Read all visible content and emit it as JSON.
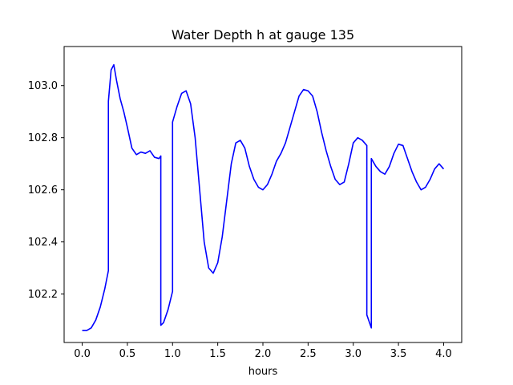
{
  "chart_data": {
    "type": "line",
    "title": "Water Depth h at gauge 135",
    "xlabel": "hours",
    "ylabel": "",
    "xlim": [
      -0.2,
      4.2
    ],
    "ylim": [
      102.014,
      103.15
    ],
    "xticks": [
      0.0,
      0.5,
      1.0,
      1.5,
      2.0,
      2.5,
      3.0,
      3.5,
      4.0
    ],
    "xtick_labels": [
      "0.0",
      "0.5",
      "1.0",
      "1.5",
      "2.0",
      "2.5",
      "3.0",
      "3.5",
      "4.0"
    ],
    "yticks": [
      102.2,
      102.4,
      102.6,
      102.8,
      103.0
    ],
    "ytick_labels": [
      "102.2",
      "102.4",
      "102.6",
      "102.8",
      "103.0"
    ],
    "grid": false,
    "series": [
      {
        "color": "#0000ff",
        "x": [
          0.0,
          0.05,
          0.1,
          0.15,
          0.2,
          0.25,
          0.29,
          0.29,
          0.32,
          0.35,
          0.38,
          0.42,
          0.46,
          0.5,
          0.55,
          0.6,
          0.65,
          0.7,
          0.75,
          0.8,
          0.85,
          0.87,
          0.87,
          0.9,
          0.95,
          1.0,
          1.0,
          1.05,
          1.1,
          1.15,
          1.2,
          1.25,
          1.3,
          1.35,
          1.4,
          1.45,
          1.5,
          1.55,
          1.6,
          1.65,
          1.7,
          1.75,
          1.8,
          1.85,
          1.9,
          1.95,
          2.0,
          2.05,
          2.1,
          2.15,
          2.2,
          2.25,
          2.3,
          2.35,
          2.4,
          2.45,
          2.5,
          2.55,
          2.6,
          2.65,
          2.7,
          2.75,
          2.8,
          2.85,
          2.9,
          2.95,
          3.0,
          3.05,
          3.1,
          3.15,
          3.15,
          3.2,
          3.2,
          3.25,
          3.3,
          3.35,
          3.4,
          3.45,
          3.5,
          3.55,
          3.6,
          3.65,
          3.7,
          3.75,
          3.8,
          3.85,
          3.9,
          3.95,
          4.0
        ],
        "y": [
          102.06,
          102.06,
          102.07,
          102.1,
          102.15,
          102.22,
          102.29,
          102.94,
          103.06,
          103.08,
          103.02,
          102.95,
          102.9,
          102.84,
          102.76,
          102.735,
          102.745,
          102.74,
          102.75,
          102.725,
          102.72,
          102.73,
          102.08,
          102.09,
          102.14,
          102.21,
          102.86,
          102.92,
          102.97,
          102.98,
          102.93,
          102.8,
          102.6,
          102.4,
          102.3,
          102.28,
          102.32,
          102.42,
          102.56,
          102.7,
          102.78,
          102.79,
          102.76,
          102.69,
          102.64,
          102.61,
          102.6,
          102.62,
          102.66,
          102.71,
          102.74,
          102.78,
          102.84,
          102.9,
          102.96,
          102.985,
          102.98,
          102.96,
          102.9,
          102.82,
          102.75,
          102.69,
          102.64,
          102.62,
          102.63,
          102.7,
          102.78,
          102.8,
          102.79,
          102.77,
          102.12,
          102.07,
          102.72,
          102.69,
          102.67,
          102.66,
          102.69,
          102.74,
          102.775,
          102.77,
          102.72,
          102.67,
          102.63,
          102.6,
          102.61,
          102.64,
          102.68,
          102.7,
          102.68
        ]
      }
    ]
  }
}
